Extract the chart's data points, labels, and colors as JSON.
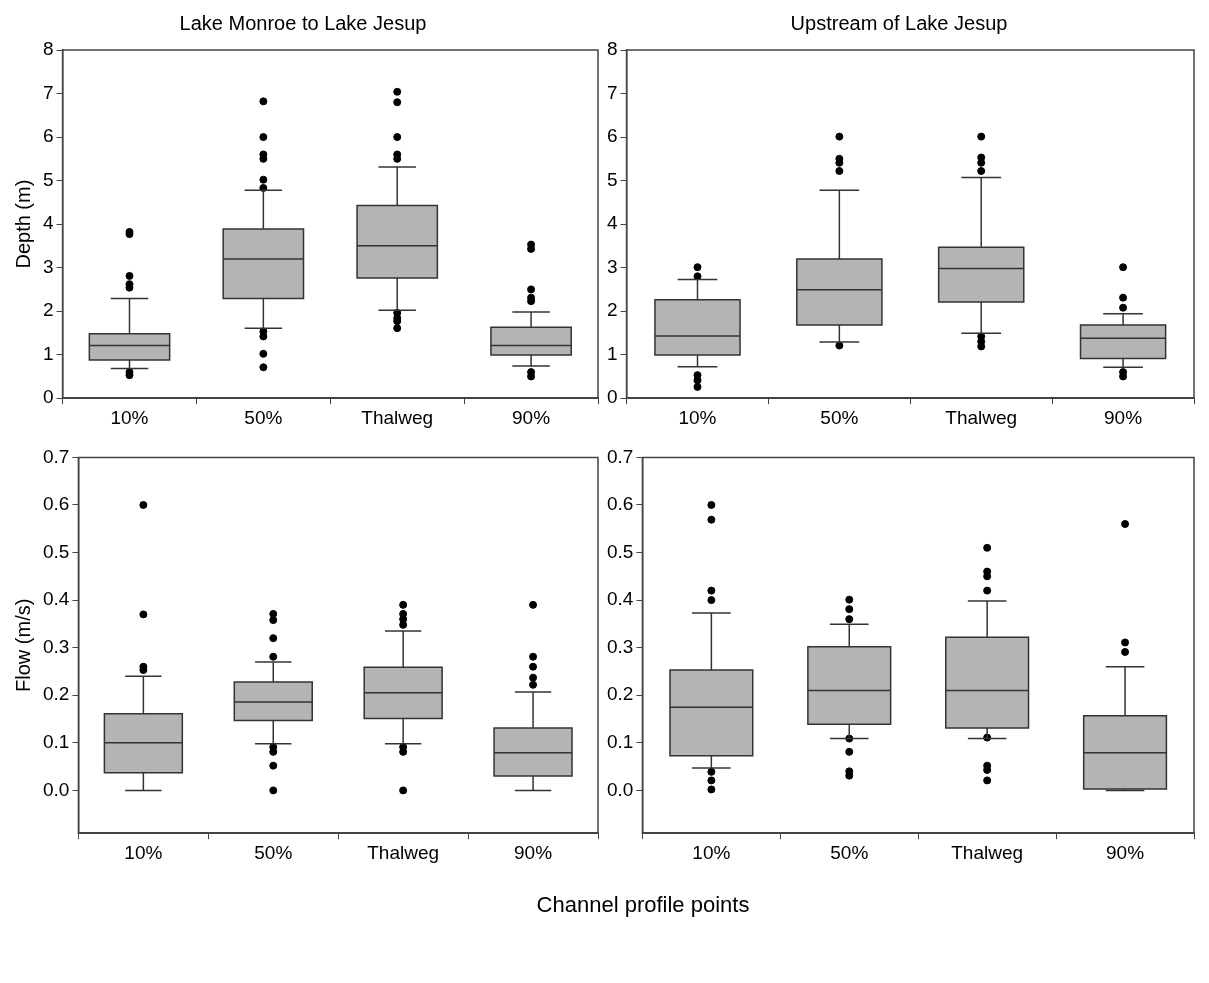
{
  "chart_data": [
    {
      "type": "box",
      "title": "Lake Monroe to Lake Jesup",
      "ylabel": "Depth (m)",
      "categories": [
        "10%",
        "50%",
        "Thalweg",
        "90%"
      ],
      "color": "#b4b4b4",
      "marker": "circle",
      "ylim": [
        0,
        8
      ],
      "yticks": [
        0,
        1,
        2,
        3,
        4,
        5,
        6,
        7,
        8
      ],
      "boxes": [
        {
          "low": 0.68,
          "q1": 0.88,
          "median": 1.21,
          "q3": 1.48,
          "high": 2.29,
          "outliers": [
            0.6,
            0.53,
            2.54,
            2.62,
            2.81,
            3.77,
            3.82
          ]
        },
        {
          "low": 1.61,
          "q1": 2.29,
          "median": 3.2,
          "q3": 3.89,
          "high": 4.78,
          "outliers": [
            1.53,
            1.42,
            1.02,
            0.71,
            4.83,
            5.02,
            5.5,
            5.6,
            6.0,
            6.82
          ]
        },
        {
          "low": 2.02,
          "q1": 2.76,
          "median": 3.5,
          "q3": 4.43,
          "high": 5.31,
          "outliers": [
            1.96,
            1.84,
            1.77,
            1.61,
            5.5,
            5.6,
            6.0,
            6.8,
            7.04
          ]
        },
        {
          "low": 0.74,
          "q1": 0.99,
          "median": 1.21,
          "q3": 1.63,
          "high": 1.98,
          "outliers": [
            0.6,
            0.5,
            2.23,
            2.31,
            2.5,
            3.43,
            3.53
          ]
        }
      ]
    },
    {
      "type": "box",
      "title": "Upstream of Lake Jesup",
      "categories": [
        "10%",
        "50%",
        "Thalweg",
        "90%"
      ],
      "color": "#b4b4b4",
      "marker": "circle",
      "ylim": [
        0,
        8
      ],
      "yticks": [
        0,
        1,
        2,
        3,
        4,
        5,
        6,
        7,
        8
      ],
      "boxes": [
        {
          "low": 0.72,
          "q1": 0.99,
          "median": 1.43,
          "q3": 2.26,
          "high": 2.73,
          "outliers": [
            0.53,
            0.41,
            0.26,
            2.8,
            3.01
          ]
        },
        {
          "low": 1.29,
          "q1": 1.68,
          "median": 2.49,
          "q3": 3.2,
          "high": 4.78,
          "outliers": [
            1.21,
            5.22,
            5.41,
            5.5,
            6.01
          ]
        },
        {
          "low": 1.49,
          "q1": 2.21,
          "median": 2.98,
          "q3": 3.47,
          "high": 5.07,
          "outliers": [
            1.42,
            1.3,
            1.19,
            5.22,
            5.41,
            5.53,
            6.01
          ]
        },
        {
          "low": 0.71,
          "q1": 0.91,
          "median": 1.38,
          "q3": 1.68,
          "high": 1.94,
          "outliers": [
            0.6,
            0.5,
            2.08,
            2.31,
            3.01
          ]
        }
      ]
    },
    {
      "type": "box",
      "ylabel": "Flow (m/s)",
      "xlabel": "Channel profile points",
      "categories": [
        "10%",
        "50%",
        "Thalweg",
        "90%"
      ],
      "color": "#b4b4b4",
      "marker": "circle",
      "ylim": [
        -0.09,
        0.7
      ],
      "yticks": [
        {
          "value": 0,
          "label": "0.0"
        },
        {
          "value": 0.1,
          "label": "0.1"
        },
        {
          "value": 0.2,
          "label": "0.2"
        },
        {
          "value": 0.3,
          "label": "0.3"
        },
        {
          "value": 0.4,
          "label": "0.4"
        },
        {
          "value": 0.5,
          "label": "0.5"
        },
        {
          "value": 0.6,
          "label": "0.6"
        },
        {
          "value": 0.7,
          "label": "0.7"
        }
      ],
      "boxes": [
        {
          "low": 0,
          "q1": 0.037,
          "median": 0.1,
          "q3": 0.161,
          "high": 0.24,
          "outliers": [
            0.253,
            0.26,
            0.37,
            0.6
          ]
        },
        {
          "low": 0.098,
          "q1": 0.147,
          "median": 0.186,
          "q3": 0.228,
          "high": 0.27,
          "outliers": [
            0.091,
            0.081,
            0.052,
            0,
            0.281,
            0.32,
            0.358,
            0.371
          ]
        },
        {
          "low": 0.098,
          "q1": 0.151,
          "median": 0.205,
          "q3": 0.259,
          "high": 0.335,
          "outliers": [
            0.091,
            0.081,
            0,
            0.348,
            0.36,
            0.371,
            0.39
          ]
        },
        {
          "low": 0,
          "q1": 0.03,
          "median": 0.079,
          "q3": 0.131,
          "high": 0.207,
          "outliers": [
            0.222,
            0.237,
            0.26,
            0.281,
            0.39
          ]
        }
      ]
    },
    {
      "type": "box",
      "categories": [
        "10%",
        "50%",
        "Thalweg",
        "90%"
      ],
      "color": "#b4b4b4",
      "marker": "circle",
      "ylim": [
        -0.09,
        0.7
      ],
      "yticks": [
        {
          "value": 0,
          "label": "0.0"
        },
        {
          "value": 0.1,
          "label": "0.1"
        },
        {
          "value": 0.2,
          "label": "0.2"
        },
        {
          "value": 0.3,
          "label": "0.3"
        },
        {
          "value": 0.4,
          "label": "0.4"
        },
        {
          "value": 0.5,
          "label": "0.5"
        },
        {
          "value": 0.6,
          "label": "0.6"
        },
        {
          "value": 0.7,
          "label": "0.7"
        }
      ],
      "boxes": [
        {
          "low": 0.047,
          "q1": 0.073,
          "median": 0.175,
          "q3": 0.253,
          "high": 0.373,
          "outliers": [
            0.039,
            0.021,
            0.002,
            0.4,
            0.42,
            0.569,
            0.6
          ]
        },
        {
          "low": 0.109,
          "q1": 0.139,
          "median": 0.21,
          "q3": 0.302,
          "high": 0.349,
          "outliers": [
            0.109,
            0.081,
            0.04,
            0.031,
            0.36,
            0.381,
            0.401
          ]
        },
        {
          "low": 0.109,
          "q1": 0.131,
          "median": 0.21,
          "q3": 0.322,
          "high": 0.398,
          "outliers": [
            0.111,
            0.052,
            0.043,
            0.021,
            0.42,
            0.45,
            0.46,
            0.51
          ]
        },
        {
          "low": 0,
          "q1": 0.003,
          "median": 0.079,
          "q3": 0.157,
          "high": 0.26,
          "outliers": [
            0.291,
            0.311,
            0.56
          ]
        }
      ]
    }
  ]
}
